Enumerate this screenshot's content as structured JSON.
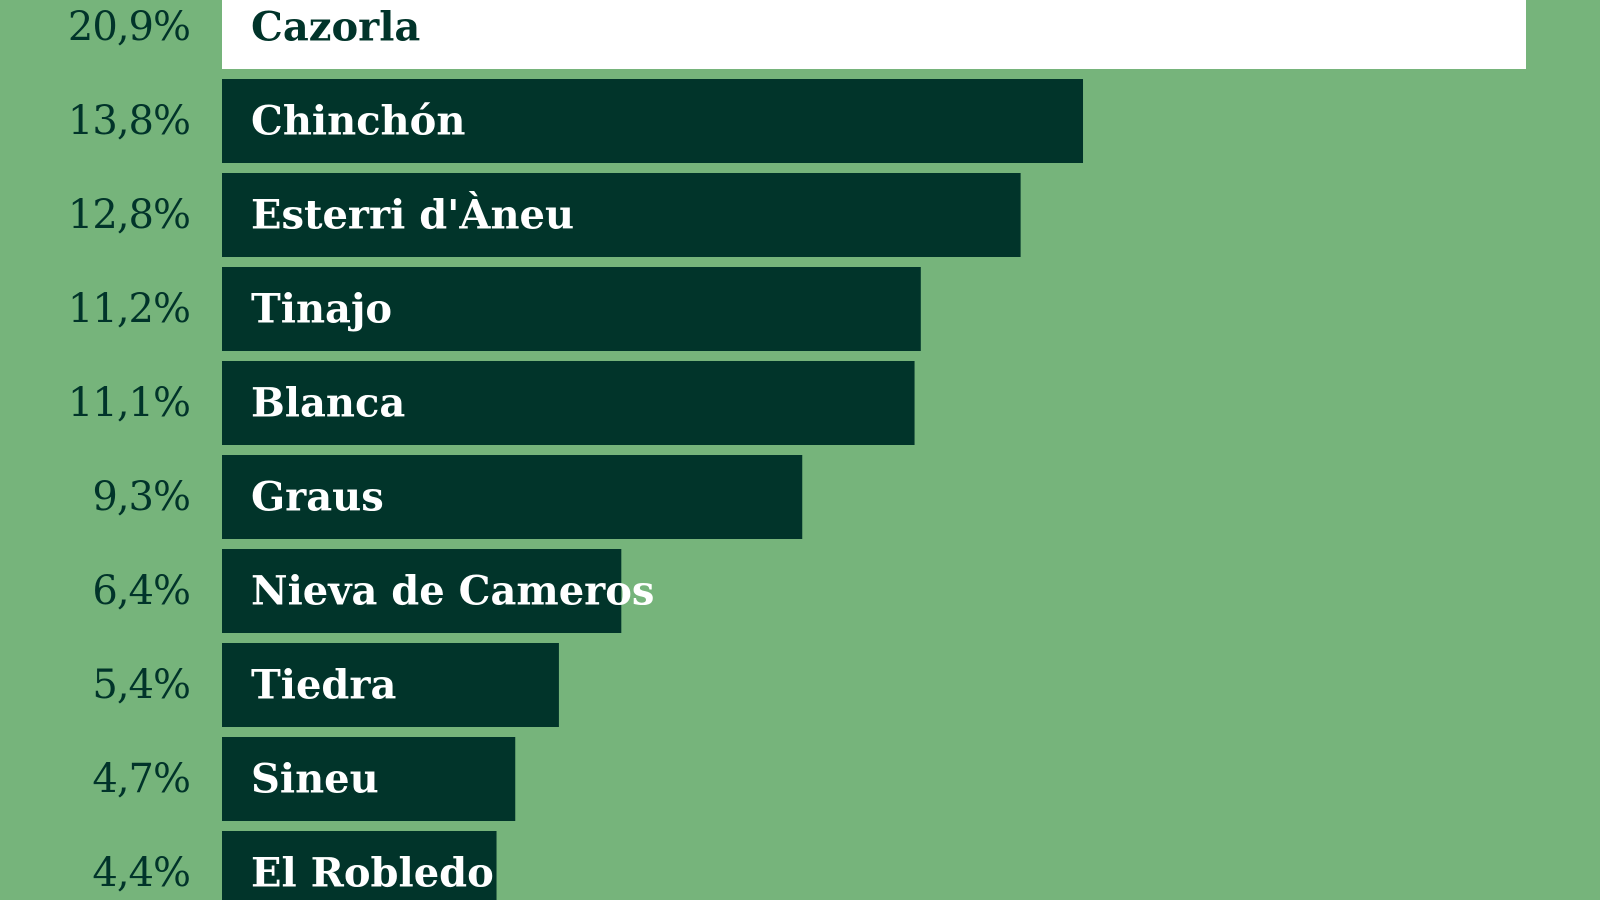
{
  "chart_data": {
    "type": "bar",
    "orientation": "horizontal",
    "categories": [
      "Cazorla",
      "Chinchón",
      "Esterri d'Àneu",
      "Tinajo",
      "Blanca",
      "Graus",
      "Nieva de Cameros",
      "Tiedra",
      "Sineu",
      "El Robledo"
    ],
    "values": [
      20.9,
      13.8,
      12.8,
      11.2,
      11.1,
      9.3,
      6.4,
      5.4,
      4.7,
      4.4
    ],
    "value_labels": [
      "20,9%",
      "13,8%",
      "12,8%",
      "11,2%",
      "11,1%",
      "9,3%",
      "6,4%",
      "5,4%",
      "4,7%",
      "4,4%"
    ],
    "highlighted_category": "Cazorla",
    "xlim": [
      0,
      20.9
    ],
    "grid": false,
    "legend": "none"
  },
  "colors": {
    "background": "#76b47b",
    "bar": "#01342a",
    "highlight_bar": "#ffffff",
    "bar_text": "#ffffff",
    "highlight_bar_text": "#01342a",
    "value_text": "#01342a"
  }
}
